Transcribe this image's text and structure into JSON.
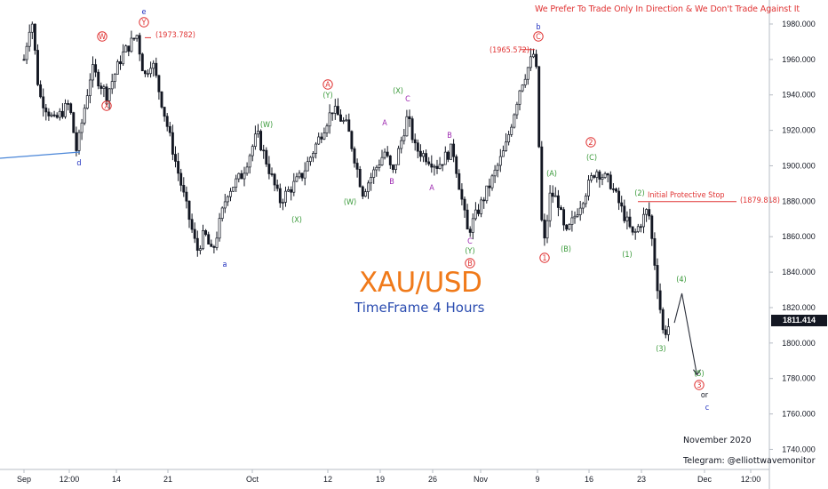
{
  "header_note": "We Prefer To Trade Only In Direction & We Don't Trade Against It",
  "title": "XAU/USD",
  "subtitle": "TimeFrame 4 Hours",
  "footer_date": "November 2020",
  "footer_telegram": "Telegram: @elliottwavemonitor",
  "current_price": "1811.414",
  "colors": {
    "red": "#e03333",
    "green": "#3a9a3a",
    "purple": "#9c27b0",
    "blue": "#1f2fbf",
    "candle": "#131722",
    "trendline": "#4a86d8"
  },
  "chart_data": {
    "type": "line",
    "y_axis": {
      "ticks": [
        "1980.000",
        "1960.000",
        "1940.000",
        "1920.000",
        "1900.000",
        "1880.000",
        "1860.000",
        "1840.000",
        "1820.000",
        "1800.000",
        "1780.000",
        "1760.000",
        "1740.000"
      ],
      "ylim": [
        1735,
        1990
      ]
    },
    "x_axis": {
      "ticks": [
        "Sep",
        "12:00",
        "14",
        "21",
        "Oct",
        "12",
        "19",
        "26",
        "Nov",
        "9",
        "16",
        "23",
        "Dec",
        "12:00"
      ]
    },
    "price_path": [
      [
        "Sep 01",
        1960
      ],
      [
        "Sep 02",
        1985
      ],
      [
        "Sep 03",
        1940
      ],
      [
        "Sep 05",
        1925
      ],
      [
        "Sep 07",
        1935
      ],
      [
        "Sep 08",
        1908
      ],
      [
        "Sep 10",
        1955
      ],
      [
        "Sep 12",
        1940
      ],
      [
        "Sep 14",
        1962
      ],
      [
        "Sep 16",
        1974
      ],
      [
        "Sep 17",
        1950
      ],
      [
        "Sep 18",
        1960
      ],
      [
        "Sep 21",
        1905
      ],
      [
        "Sep 24",
        1852
      ],
      [
        "Sep 25",
        1862
      ],
      [
        "Sep 26",
        1850
      ],
      [
        "Sep 28",
        1885
      ],
      [
        "Sep 30",
        1895
      ],
      [
        "Oct 02",
        1918
      ],
      [
        "Oct 05",
        1880
      ],
      [
        "Oct 08",
        1895
      ],
      [
        "Oct 12",
        1932
      ],
      [
        "Oct 14",
        1922
      ],
      [
        "Oct 16",
        1885
      ],
      [
        "Oct 19",
        1908
      ],
      [
        "Oct 20",
        1895
      ],
      [
        "Oct 22",
        1928
      ],
      [
        "Oct 23",
        1910
      ],
      [
        "Oct 26",
        1900
      ],
      [
        "Oct 28",
        1910
      ],
      [
        "Oct 30",
        1862
      ],
      [
        "Nov 02",
        1890
      ],
      [
        "Nov 04",
        1910
      ],
      [
        "Nov 06",
        1945
      ],
      [
        "Nov 08",
        1965.572
      ],
      [
        "Nov 09",
        1850
      ],
      [
        "Nov 10",
        1885
      ],
      [
        "Nov 11",
        1880
      ],
      [
        "Nov 12",
        1860
      ],
      [
        "Nov 16",
        1898
      ],
      [
        "Nov 18",
        1890
      ],
      [
        "Nov 20",
        1870
      ],
      [
        "Nov 21",
        1860
      ],
      [
        "Nov 23",
        1876
      ],
      [
        "Nov 24",
        1840
      ],
      [
        "Nov 25",
        1805
      ],
      [
        "Nov 26",
        1811.414
      ]
    ],
    "projection": [
      [
        "Nov 26",
        1811.414
      ],
      [
        "Nov 27",
        1828
      ],
      [
        "Nov 29",
        1782
      ]
    ],
    "annotations": [
      {
        "text": "(1973.782)",
        "color": "red"
      },
      {
        "text": "(1965.572)",
        "color": "red"
      },
      {
        "text": "(1879.818)",
        "color": "red"
      },
      {
        "text": "Initial Protective Stop",
        "color": "red"
      }
    ],
    "wave_labels": [
      {
        "text": "e",
        "color": "blue",
        "circled": false
      },
      {
        "text": "W",
        "color": "red",
        "circled": true
      },
      {
        "text": "X",
        "color": "red",
        "circled": true
      },
      {
        "text": "Y",
        "color": "red",
        "circled": true
      },
      {
        "text": "d",
        "color": "blue",
        "circled": false
      },
      {
        "text": "a",
        "color": "blue",
        "circled": false
      },
      {
        "text": "(W)",
        "color": "green",
        "circled": false
      },
      {
        "text": "(X)",
        "color": "green",
        "circled": false
      },
      {
        "text": "(Y)",
        "color": "green",
        "circled": false
      },
      {
        "text": "A",
        "color": "red",
        "circled": true
      },
      {
        "text": "(W)",
        "color": "green",
        "circled": false
      },
      {
        "text": "(X)",
        "color": "green",
        "circled": false
      },
      {
        "text": "A",
        "color": "purple",
        "circled": false
      },
      {
        "text": "B",
        "color": "purple",
        "circled": false
      },
      {
        "text": "C",
        "color": "purple",
        "circled": false
      },
      {
        "text": "B",
        "color": "purple",
        "circled": false
      },
      {
        "text": "A",
        "color": "purple",
        "circled": false
      },
      {
        "text": "C",
        "color": "purple",
        "circled": false
      },
      {
        "text": "(Y)",
        "color": "green",
        "circled": false
      },
      {
        "text": "B",
        "color": "red",
        "circled": true
      },
      {
        "text": "b",
        "color": "blue",
        "circled": false
      },
      {
        "text": "C",
        "color": "red",
        "circled": true
      },
      {
        "text": "1",
        "color": "red",
        "circled": true
      },
      {
        "text": "(A)",
        "color": "green",
        "circled": false
      },
      {
        "text": "(B)",
        "color": "green",
        "circled": false
      },
      {
        "text": "2",
        "color": "red",
        "circled": true
      },
      {
        "text": "(C)",
        "color": "green",
        "circled": false
      },
      {
        "text": "(1)",
        "color": "green",
        "circled": false
      },
      {
        "text": "(2)",
        "color": "green",
        "circled": false
      },
      {
        "text": "(3)",
        "color": "green",
        "circled": false
      },
      {
        "text": "(4)",
        "color": "green",
        "circled": false
      },
      {
        "text": "(5)",
        "color": "green",
        "circled": false
      },
      {
        "text": "3",
        "color": "red",
        "circled": true
      },
      {
        "text": "or",
        "color": "black",
        "circled": false
      },
      {
        "text": "c",
        "color": "blue",
        "circled": false
      }
    ]
  }
}
